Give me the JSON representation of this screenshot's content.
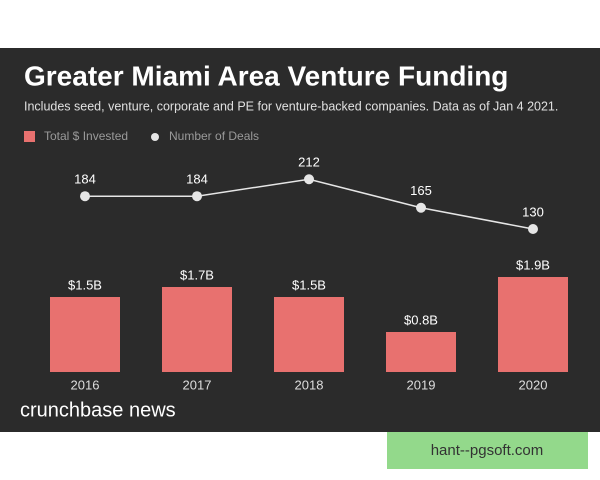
{
  "chart_data": {
    "type": "bar",
    "title": "Greater Miami Area Venture Funding",
    "subtitle": "Includes seed, venture, corporate and PE for venture-backed companies. Data as of Jan 4 2021.",
    "categories": [
      "2016",
      "2017",
      "2018",
      "2019",
      "2020"
    ],
    "series": [
      {
        "name": "Total $ Invested",
        "type": "bar",
        "color": "#e8716f",
        "values": [
          1.5,
          1.7,
          1.5,
          0.8,
          1.9
        ],
        "value_labels": [
          "$1.5B",
          "$1.7B",
          "$1.5B",
          "$0.8B",
          "$1.9B"
        ]
      },
      {
        "name": "Number of Deals",
        "type": "line",
        "color": "#e6e6e6",
        "values": [
          184,
          184,
          212,
          165,
          130
        ]
      }
    ],
    "footer": "crunchbase news"
  },
  "watermark": "hant--pgsoft.com"
}
